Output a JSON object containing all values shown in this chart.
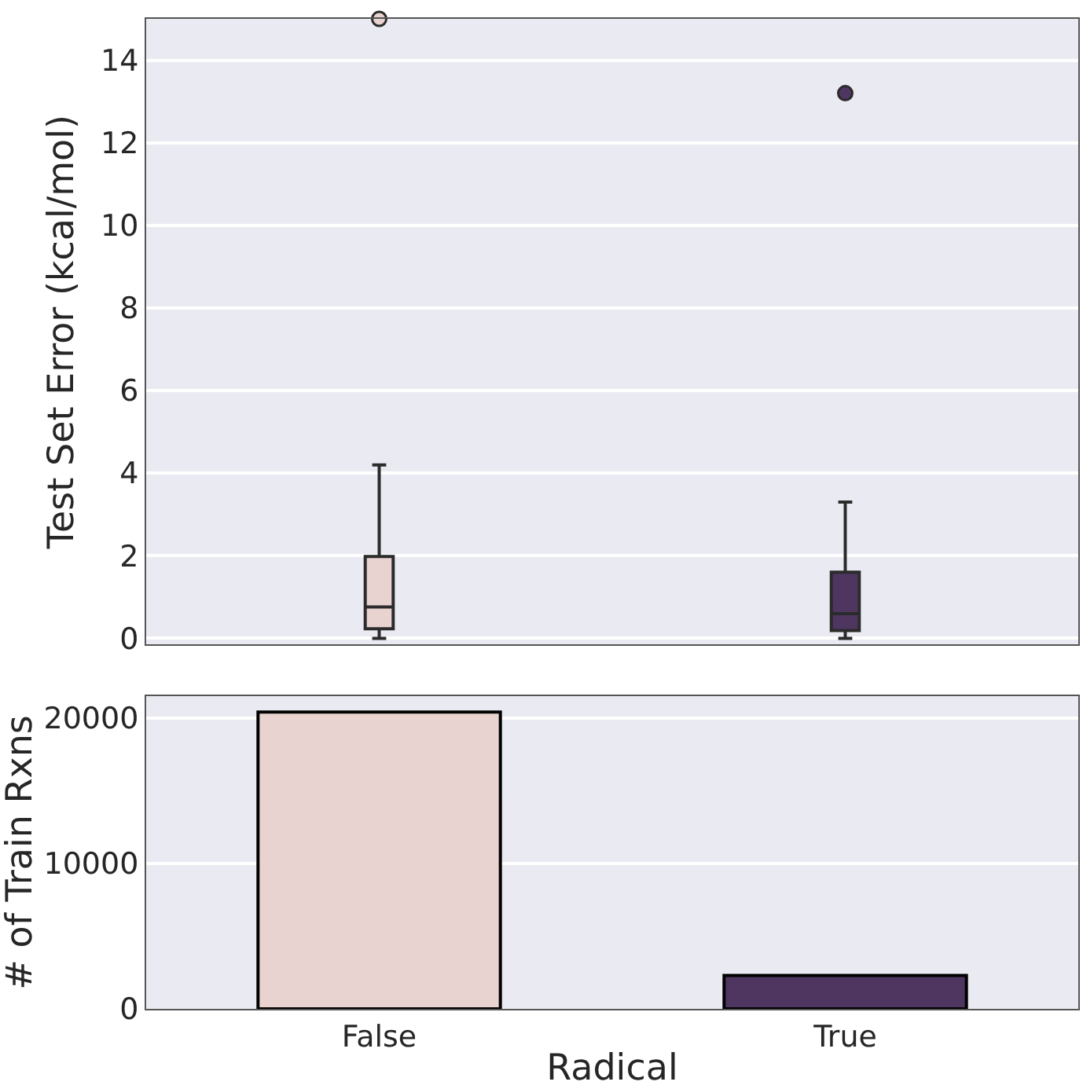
{
  "chart_data": [
    {
      "type": "box",
      "ylabel": "Test Set Error (kcal/mol)",
      "colors": [
        "#e8d3d0",
        "#4f3660"
      ],
      "boxes": [
        {
          "low": 0,
          "q1": 0.23,
          "median": 0.76,
          "q3": 1.98,
          "high": 4.2,
          "outliers": [
            15
          ]
        },
        {
          "low": 0,
          "q1": 0.19,
          "median": 0.6,
          "q3": 1.6,
          "high": 3.3,
          "outliers": [
            13.2
          ]
        }
      ],
      "ylim": [
        -0.15,
        15
      ],
      "yticks": [
        0,
        2,
        4,
        6,
        8,
        10,
        12,
        14
      ],
      "grid": "y",
      "tick_labels": "y"
    },
    {
      "type": "bar",
      "xlabel": "Radical",
      "ylabel": "# of Train Rxns",
      "categories": [
        "False",
        "True"
      ],
      "values": [
        20400,
        2300
      ],
      "colors": [
        "#e8d3d0",
        "#4f3660"
      ],
      "ylim": [
        0,
        21500
      ],
      "yticks": [
        0,
        10000,
        20000
      ],
      "grid": "y"
    }
  ]
}
